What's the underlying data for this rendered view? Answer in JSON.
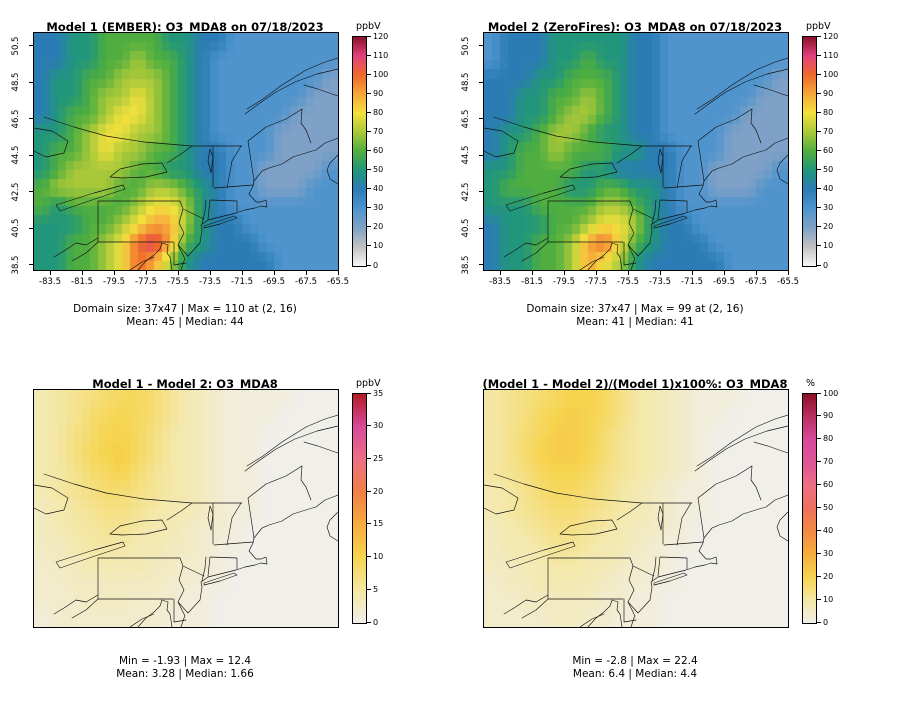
{
  "chart_data": [
    {
      "type": "heatmap",
      "title": "Model 1 (EMBER): O3_MDA8 on 07/18/2023",
      "stats_line1": "Domain size: 37x47 | Max = 110 at (2, 16)",
      "stats_line2": "Mean: 45 | Median: 44",
      "colorbar_label": "ppbV",
      "scale_min": 0,
      "scale_max": 120,
      "colorbar_ticks": [
        0,
        10,
        20,
        30,
        40,
        50,
        60,
        70,
        80,
        90,
        100,
        110,
        120
      ],
      "palette": [
        [
          0,
          "#f7f7f7"
        ],
        [
          10,
          "#c2c2c2"
        ],
        [
          20,
          "#7fa1c7"
        ],
        [
          30,
          "#4f94cd"
        ],
        [
          40,
          "#2b7cb5"
        ],
        [
          50,
          "#21967b"
        ],
        [
          60,
          "#4fae3f"
        ],
        [
          70,
          "#a8c83a"
        ],
        [
          80,
          "#f2e13c"
        ],
        [
          90,
          "#f6a83b"
        ],
        [
          100,
          "#ef6a2a"
        ],
        [
          110,
          "#e0427f"
        ],
        [
          120,
          "#8c1127"
        ]
      ],
      "x_tick_labels": [
        "-83.5",
        "-81.5",
        "-79.5",
        "-77.5",
        "-75.5",
        "-73.5",
        "-71.5",
        "-69.5",
        "-67.5",
        "-65.5"
      ],
      "y_tick_labels": [
        "50.5",
        "48.5",
        "46.5",
        "44.5",
        "42.5",
        "40.5",
        "38.5"
      ],
      "lon_range": [
        -84.5,
        -65.5
      ],
      "lat_range": [
        38.2,
        51.2
      ],
      "cell_value_scale": 10,
      "grid_unit": "ppbV",
      "grid_rows_north_to_south": [
        "4455666655443333333",
        "4455667665433333333",
        "4556677765433333332",
        "4556778765433333322",
        "4566788765433333222",
        "5567887765433332222",
        "5667877665443332222",
        "5677776655443322223",
        "6777766776543322233",
        "6566667887543333333",
        "5556678997544333333",
        "556678AB96544433333",
        "556678A975444443333"
      ]
    },
    {
      "type": "heatmap",
      "title": "Model 2 (ZeroFires): O3_MDA8 on 07/18/2023",
      "stats_line1": "Domain size: 37x47 | Max = 99 at (2, 16)",
      "stats_line2": "Mean: 41 | Median: 41",
      "colorbar_label": "ppbV",
      "scale_min": 0,
      "scale_max": 120,
      "colorbar_ticks": [
        0,
        10,
        20,
        30,
        40,
        50,
        60,
        70,
        80,
        90,
        100,
        110,
        120
      ],
      "palette": [
        [
          0,
          "#f7f7f7"
        ],
        [
          10,
          "#c2c2c2"
        ],
        [
          20,
          "#7fa1c7"
        ],
        [
          30,
          "#4f94cd"
        ],
        [
          40,
          "#2b7cb5"
        ],
        [
          50,
          "#21967b"
        ],
        [
          60,
          "#4fae3f"
        ],
        [
          70,
          "#a8c83a"
        ],
        [
          80,
          "#f2e13c"
        ],
        [
          90,
          "#f6a83b"
        ],
        [
          100,
          "#ef6a2a"
        ],
        [
          110,
          "#e0427f"
        ],
        [
          120,
          "#8c1127"
        ]
      ],
      "x_tick_labels": [
        "-83.5",
        "-81.5",
        "-79.5",
        "-77.5",
        "-75.5",
        "-73.5",
        "-71.5",
        "-69.5",
        "-67.5",
        "-65.5"
      ],
      "y_tick_labels": [
        "50.5",
        "48.5",
        "46.5",
        "44.5",
        "42.5",
        "40.5",
        "38.5"
      ],
      "lon_range": [
        -84.5,
        -65.5
      ],
      "lat_range": [
        38.2,
        51.2
      ],
      "cell_value_scale": 10,
      "grid_unit": "ppbV",
      "grid_rows_north_to_south": [
        "3444555554433333333",
        "3444556554433333333",
        "4445566654433333332",
        "4455667654433333322",
        "4455677654433333222",
        "4556776554433332222",
        "4566766655443332222",
        "5566665544443322223",
        "5666655665543322233",
        "5556666776543333333",
        "4555667887544333333",
        "4556679A86544433333",
        "4556679875444443333"
      ]
    },
    {
      "type": "heatmap",
      "title": "Model 1 - Model 2: O3_MDA8",
      "stats_line1": "Min = -1.93 | Max = 12.4",
      "stats_line2": "Mean: 3.28 |  Median: 1.66",
      "colorbar_label": "ppbV",
      "scale_min": 0,
      "scale_max": 35,
      "colorbar_ticks": [
        0,
        5,
        10,
        15,
        20,
        25,
        30,
        35
      ],
      "palette": [
        [
          0,
          "#f0efe9"
        ],
        [
          5,
          "#f4e7a4"
        ],
        [
          10,
          "#f6d44e"
        ],
        [
          15,
          "#f6ad3d"
        ],
        [
          20,
          "#f08044"
        ],
        [
          25,
          "#ec6f86"
        ],
        [
          30,
          "#d84a9b"
        ],
        [
          35,
          "#b01c25"
        ]
      ],
      "lon_range": [
        -84.5,
        -65.5
      ],
      "lat_range": [
        38.2,
        51.2
      ],
      "cell_value_scale": 1,
      "grid_unit": "ppbV",
      "grid_rows_north_to_south": [
        "4567899864321111000",
        "45689A9864321110000",
        "4578AA9754321100000",
        "4579AB9754321100000",
        "45689A8654321100000",
        "4567887654321100000",
        "3456776544321100000",
        "3455665443221000000",
        "3345554433211000000",
        "2334444332210000000",
        "2233333322110000000",
        "2223332221100000000",
        "1222222211100000000"
      ]
    },
    {
      "type": "heatmap",
      "title": "(Model 1 - Model 2)/(Model 1)x100%: O3_MDA8",
      "stats_line1": "Min = -2.8 | Max = 22.4",
      "stats_line2": "Mean: 6.4 |  Median: 4.4",
      "colorbar_label": "%",
      "scale_min": 0,
      "scale_max": 100,
      "colorbar_ticks": [
        0,
        10,
        20,
        30,
        40,
        50,
        60,
        70,
        80,
        90,
        100
      ],
      "palette": [
        [
          0,
          "#f0efe9"
        ],
        [
          10,
          "#f4e7a4"
        ],
        [
          20,
          "#f6d44e"
        ],
        [
          30,
          "#f6ad3d"
        ],
        [
          40,
          "#f28a45"
        ],
        [
          50,
          "#ef705c"
        ],
        [
          60,
          "#ec6f86"
        ],
        [
          70,
          "#de5596"
        ],
        [
          80,
          "#d84a9b"
        ],
        [
          90,
          "#bb2f63"
        ],
        [
          100,
          "#8c1127"
        ]
      ],
      "lon_range": [
        -84.5,
        -65.5
      ],
      "lat_range": [
        38.2,
        51.2
      ],
      "cell_value_scale": 2,
      "grid_unit": "%",
      "grid_rows_north_to_south": [
        "56789AA975432111000",
        "5679ABA975432110000",
        "5689BBA865432100000",
        "568ABBA865432100000",
        "5679AA9765432100000",
        "4568998754321100000",
        "4567887654321100000",
        "3456776543321000000",
        "3445665443211000000",
        "3344554432210000000",
        "2334444322110000000",
        "2233333221100000000",
        "2222332211100000000"
      ]
    }
  ]
}
